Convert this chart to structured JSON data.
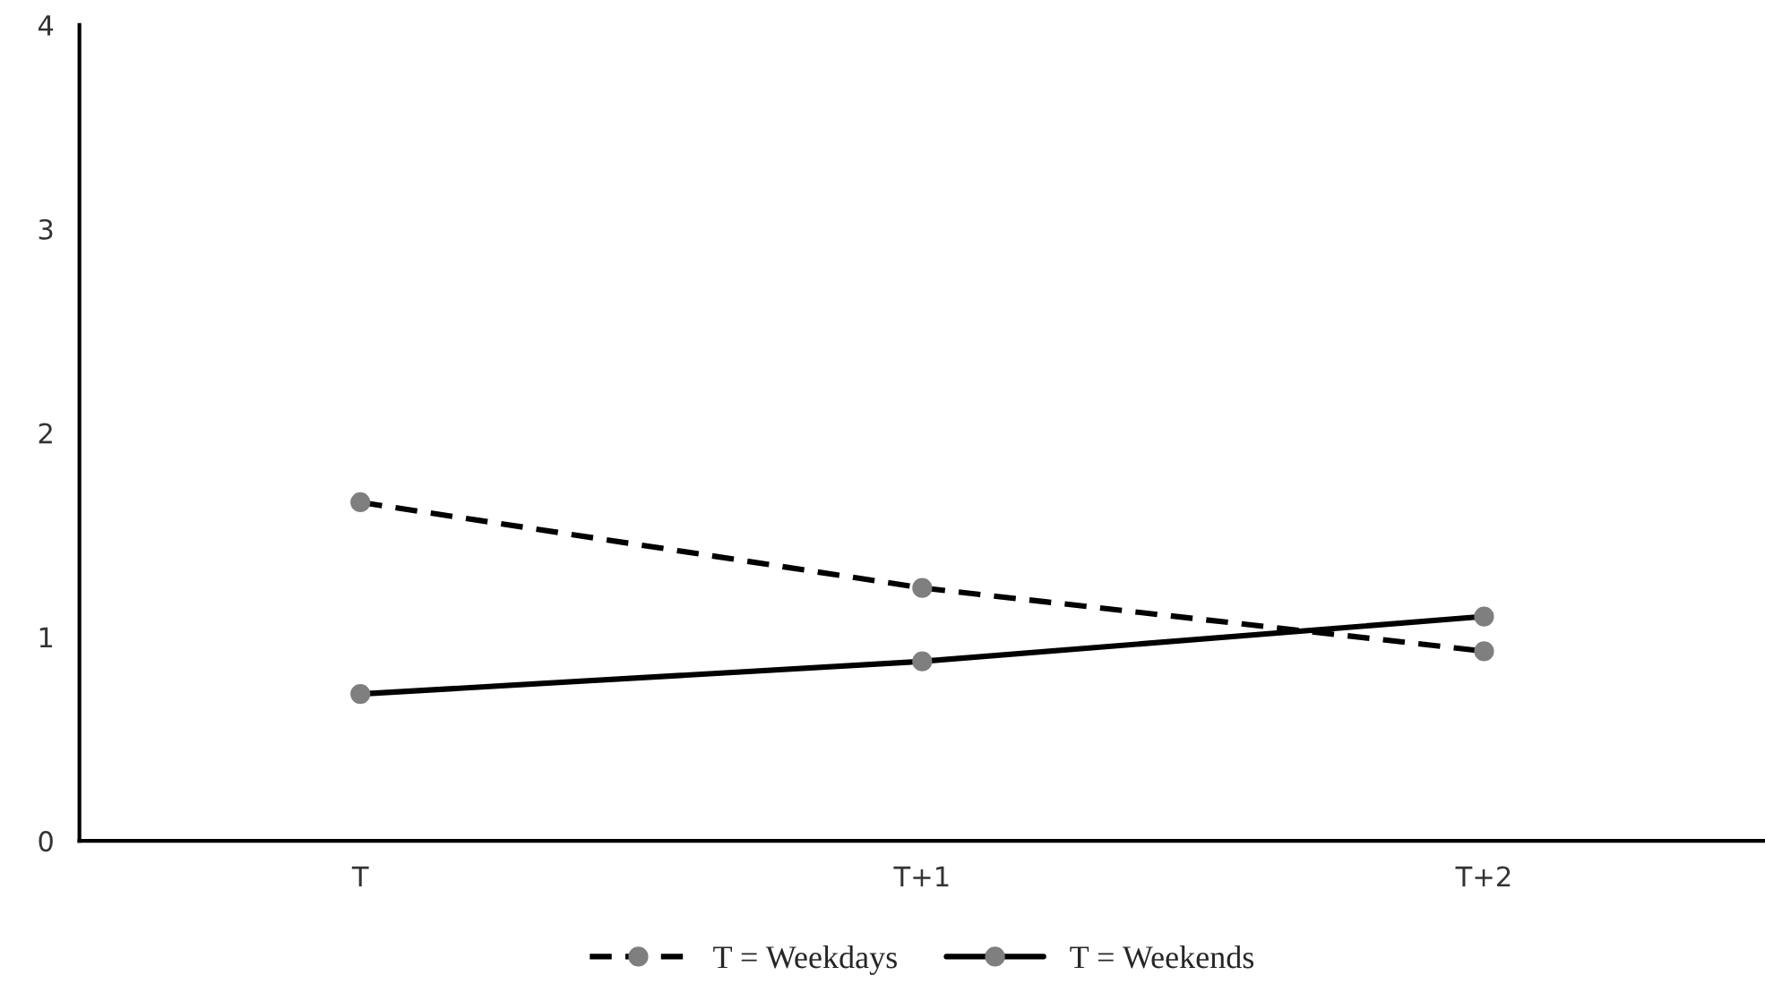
{
  "chart_data": {
    "type": "line",
    "categories": [
      "T",
      "T+1",
      "T+2"
    ],
    "series": [
      {
        "name": "T = Weekdays",
        "color": "#000000",
        "line_style": "dashed",
        "values": [
          1.66,
          1.24,
          0.93
        ]
      },
      {
        "name": "T = Weekends",
        "color": "#000000",
        "line_style": "solid",
        "values": [
          0.72,
          0.88,
          1.1
        ]
      }
    ],
    "ylim": [
      0,
      4
    ],
    "yticks": [
      0,
      1,
      2,
      3,
      4
    ],
    "grid": false,
    "legend": "bottom",
    "marker": "circle"
  }
}
